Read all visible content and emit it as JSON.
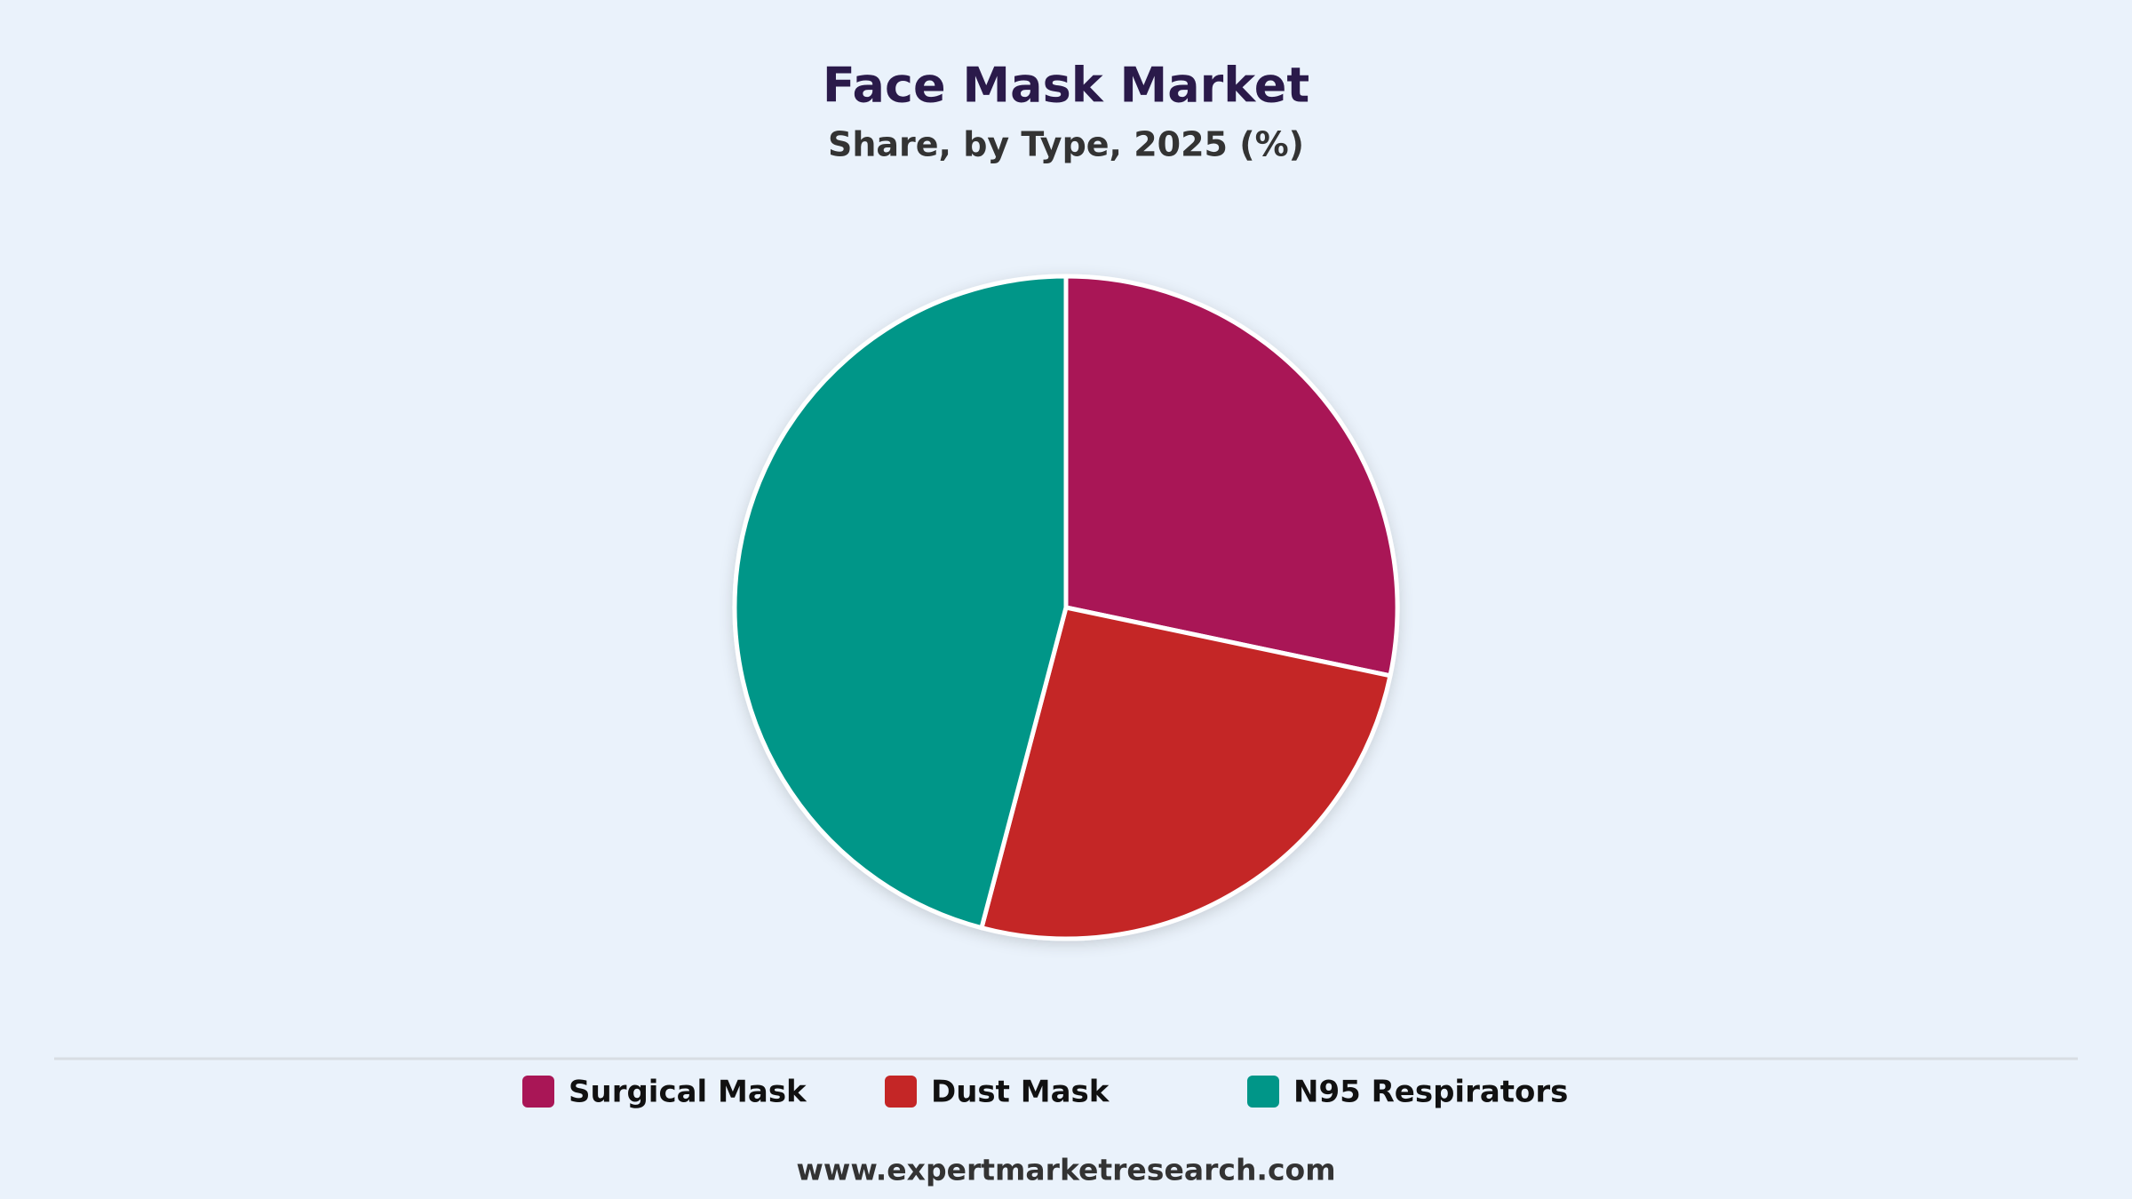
{
  "chart_data": {
    "type": "pie",
    "title": "Face Mask Market",
    "subtitle": "Share, by Type, 2025 (%)",
    "categories": [
      "Surgical Mask",
      "Dust Mask",
      "N95 Respirators"
    ],
    "values": [
      28.3,
      25.8,
      45.9
    ],
    "colors": [
      "#a91656",
      "#c42626",
      "#009688"
    ],
    "footer": "www.expertmarketresearch.com"
  }
}
